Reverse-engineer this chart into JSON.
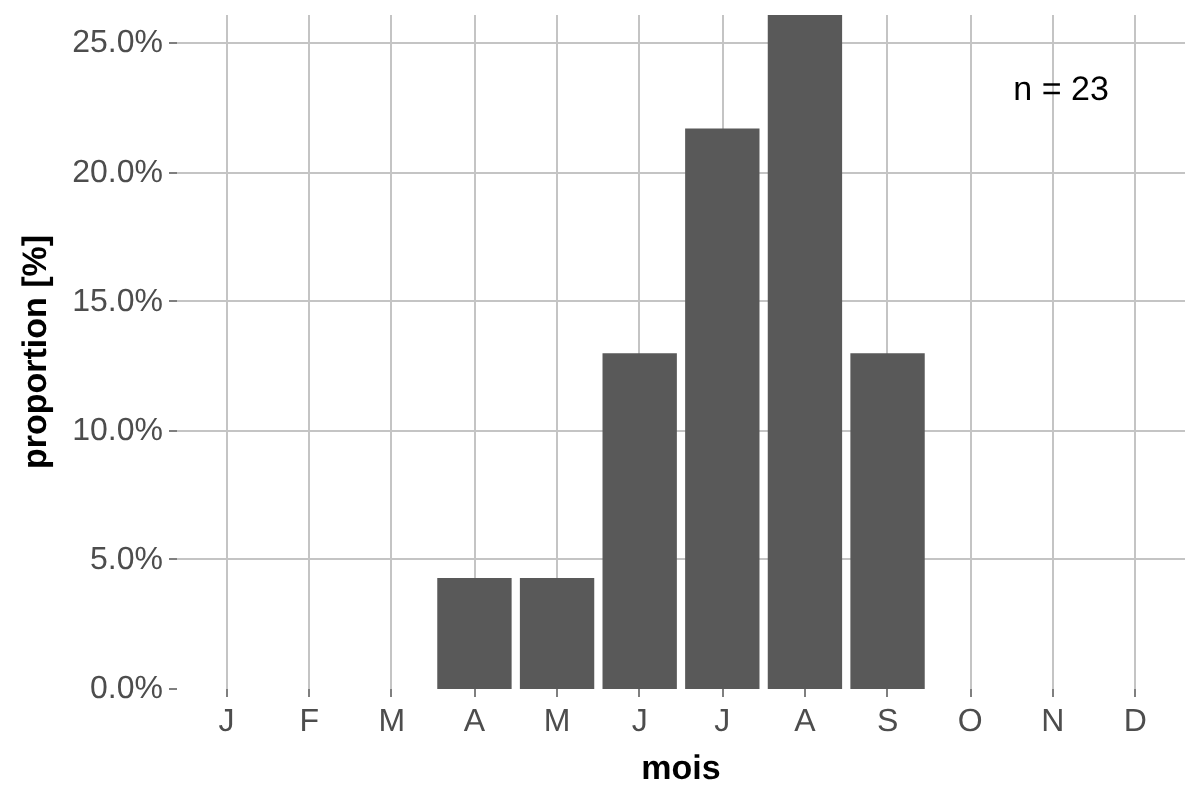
{
  "chart_data": {
    "type": "bar",
    "categories": [
      "J",
      "F",
      "M",
      "A",
      "M",
      "J",
      "J",
      "A",
      "S",
      "O",
      "N",
      "D"
    ],
    "values": [
      null,
      null,
      null,
      4.3,
      4.3,
      13.0,
      21.7,
      26.1,
      13.0,
      null,
      null,
      null
    ],
    "color": "#595959",
    "xlabel": "mois",
    "ylabel": "proportion [%]",
    "ylim": [
      0,
      26.1
    ],
    "yticks": [
      {
        "value": 0,
        "label": "0.0%"
      },
      {
        "value": 5,
        "label": "5.0%"
      },
      {
        "value": 10,
        "label": "10.0%"
      },
      {
        "value": 15,
        "label": "15.0%"
      },
      {
        "value": 20,
        "label": "20.0%"
      },
      {
        "value": 25,
        "label": "25.0%"
      }
    ],
    "grid": true,
    "annotations": [
      "n = 23"
    ]
  }
}
